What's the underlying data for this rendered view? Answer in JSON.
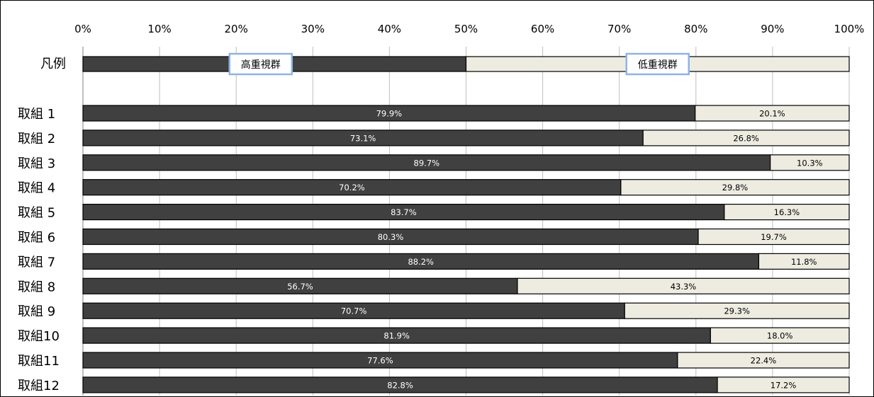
{
  "chart_data": {
    "type": "bar",
    "orientation": "horizontal",
    "stacked": "percent",
    "x_ticks": [
      "0%",
      "10%",
      "20%",
      "30%",
      "40%",
      "50%",
      "60%",
      "70%",
      "80%",
      "90%",
      "100%"
    ],
    "xlim": [
      0,
      100
    ],
    "grid": true,
    "legend": {
      "row_label": "凡例",
      "placement": "top",
      "entries": [
        "高重視群",
        "低重視群"
      ]
    },
    "categories": [
      "取組 1",
      "取組 2",
      "取組 3",
      "取組 4",
      "取組 5",
      "取組 6",
      "取組 7",
      "取組 8",
      "取組 9",
      "取組10",
      "取組11",
      "取組12"
    ],
    "series": [
      {
        "name": "高重視群",
        "color": "#404040",
        "values": [
          79.9,
          73.1,
          89.7,
          70.2,
          83.7,
          80.3,
          88.2,
          56.7,
          70.7,
          81.9,
          77.6,
          82.8
        ],
        "labels": [
          "79.9%",
          "73.1%",
          "89.7%",
          "70.2%",
          "83.7%",
          "80.3%",
          "88.2%",
          "56.7%",
          "70.7%",
          "81.9%",
          "77.6%",
          "82.8%"
        ]
      },
      {
        "name": "低重視群",
        "color": "#eeece1",
        "values": [
          20.1,
          26.8,
          10.3,
          29.8,
          16.3,
          19.7,
          11.8,
          43.3,
          29.3,
          18.0,
          22.4,
          17.2
        ],
        "labels": [
          "20.1%",
          "26.8%",
          "10.3%",
          "29.8%",
          "16.3%",
          "19.7%",
          "11.8%",
          "43.3%",
          "29.3%",
          "18.0%",
          "22.4%",
          "17.2%"
        ]
      }
    ]
  }
}
